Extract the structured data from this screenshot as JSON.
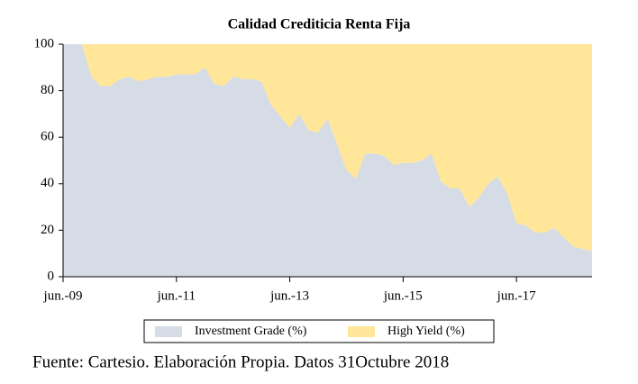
{
  "chart_data": {
    "type": "area",
    "stacked": true,
    "title": "Calidad  Crediticia Renta Fija",
    "source": "Fuente: Cartesio. Elaboración Propia. Datos 31Octubre 2018",
    "categories": [
      "jun.-09",
      null,
      null,
      null,
      null,
      null,
      null,
      null,
      null,
      null,
      null,
      null,
      "jun.-11",
      null,
      null,
      null,
      null,
      null,
      null,
      null,
      null,
      null,
      null,
      null,
      "jun.-13",
      null,
      null,
      null,
      null,
      null,
      null,
      null,
      null,
      null,
      null,
      null,
      "jun.-15",
      null,
      null,
      null,
      null,
      null,
      null,
      null,
      null,
      null,
      null,
      null,
      "jun.-17",
      null,
      null,
      null,
      null,
      null,
      null,
      null,
      null
    ],
    "series": [
      {
        "name": "Investment Grade (%)",
        "color": "#d6dce5",
        "values": [
          100,
          100,
          100,
          86,
          82,
          82,
          85,
          86,
          84,
          85,
          86,
          86,
          87,
          87,
          87,
          90,
          83,
          82,
          86,
          85,
          85,
          84,
          74,
          69,
          64,
          70,
          63,
          62,
          68,
          57,
          46,
          42,
          53,
          53,
          52,
          48,
          49,
          49,
          50,
          53,
          41,
          38,
          38,
          30,
          34,
          40,
          43,
          36,
          23,
          22,
          19,
          19,
          21,
          17,
          13,
          12,
          11
        ]
      },
      {
        "name": "High Yield (%)",
        "color": "#ffe699",
        "values": [
          0,
          0,
          0,
          14,
          18,
          18,
          15,
          14,
          16,
          15,
          14,
          14,
          13,
          13,
          13,
          10,
          17,
          18,
          14,
          15,
          15,
          16,
          26,
          31,
          36,
          30,
          37,
          38,
          32,
          43,
          54,
          58,
          47,
          47,
          48,
          52,
          51,
          51,
          50,
          47,
          59,
          62,
          62,
          70,
          66,
          60,
          57,
          64,
          77,
          78,
          81,
          81,
          79,
          83,
          87,
          88,
          89
        ]
      }
    ],
    "ylim": [
      0,
      100
    ],
    "yticks": [
      0,
      20,
      40,
      60,
      80,
      100
    ],
    "grid": false
  }
}
